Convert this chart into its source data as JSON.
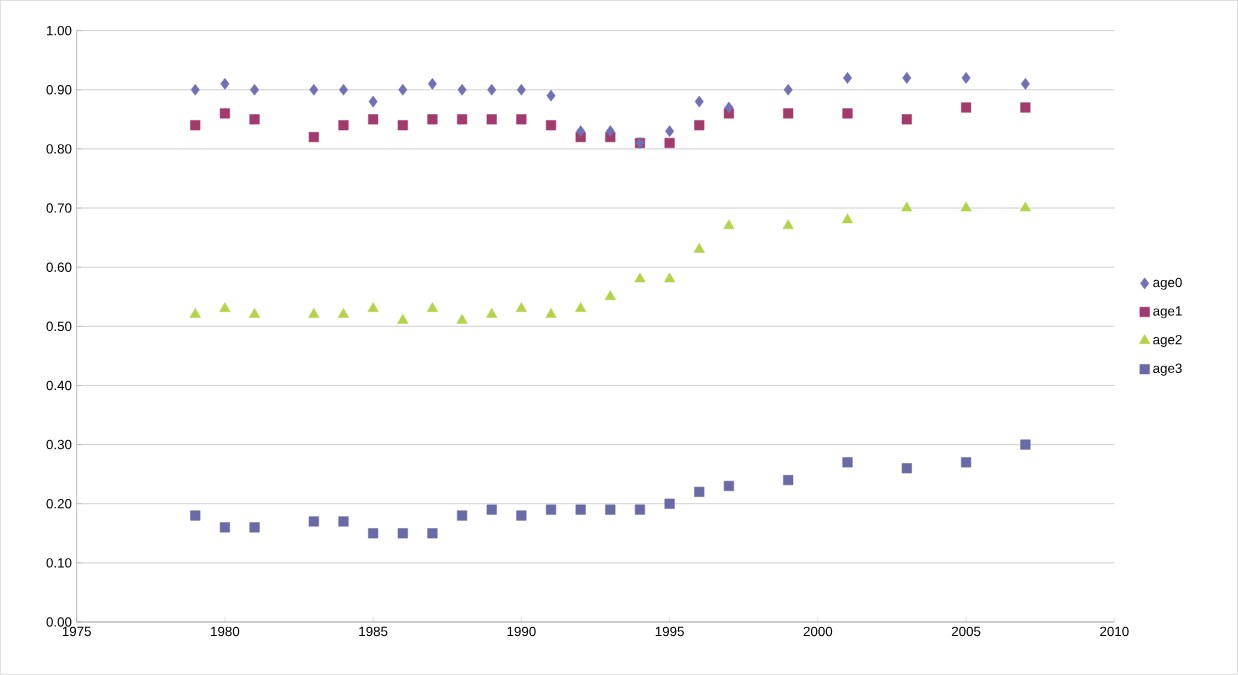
{
  "chart_data": {
    "type": "scatter",
    "x": [
      1979,
      1980,
      1981,
      1983,
      1984,
      1985,
      1986,
      1987,
      1988,
      1989,
      1990,
      1991,
      1992,
      1993,
      1994,
      1995,
      1996,
      1997,
      1999,
      2001,
      2003,
      2005,
      2007
    ],
    "series": [
      {
        "name": "age0",
        "color": "#7070b4",
        "marker": "diamond",
        "values": [
          0.9,
          0.91,
          0.9,
          0.9,
          0.9,
          0.88,
          0.9,
          0.91,
          0.9,
          0.9,
          0.9,
          0.89,
          0.83,
          0.83,
          0.81,
          0.83,
          0.88,
          0.87,
          0.9,
          0.92,
          0.92,
          0.92,
          0.91
        ]
      },
      {
        "name": "age1",
        "color": "#a23a6c",
        "marker": "square",
        "values": [
          0.84,
          0.86,
          0.85,
          0.82,
          0.84,
          0.85,
          0.84,
          0.85,
          0.85,
          0.85,
          0.85,
          0.84,
          0.82,
          0.82,
          0.81,
          0.81,
          0.84,
          0.86,
          0.86,
          0.86,
          0.85,
          0.87,
          0.87
        ]
      },
      {
        "name": "age2",
        "color": "#b5d34a",
        "marker": "triangle",
        "values": [
          0.52,
          0.53,
          0.52,
          0.52,
          0.52,
          0.53,
          0.51,
          0.53,
          0.51,
          0.52,
          0.53,
          0.52,
          0.53,
          0.55,
          0.58,
          0.58,
          0.63,
          0.67,
          0.67,
          0.68,
          0.7,
          0.7,
          0.7
        ]
      },
      {
        "name": "age3",
        "color": "#6a6aa6",
        "marker": "square",
        "values": [
          0.18,
          0.16,
          0.16,
          0.17,
          0.17,
          0.15,
          0.15,
          0.15,
          0.18,
          0.19,
          0.18,
          0.19,
          0.19,
          0.19,
          0.19,
          0.2,
          0.22,
          0.23,
          0.24,
          0.27,
          0.26,
          0.27,
          0.3
        ]
      }
    ],
    "xlim": [
      1975,
      2010
    ],
    "xticks": [
      1975,
      1980,
      1985,
      1990,
      1995,
      2000,
      2005,
      2010
    ],
    "ylim": [
      0,
      1
    ],
    "yticks": [
      {
        "value": 0,
        "label": "0.00"
      },
      {
        "value": 0.1,
        "label": "0.10"
      },
      {
        "value": 0.2,
        "label": "0.20"
      },
      {
        "value": 0.3,
        "label": "0.30"
      },
      {
        "value": 0.4,
        "label": "0.40"
      },
      {
        "value": 0.5,
        "label": "0.50"
      },
      {
        "value": 0.6,
        "label": "0.60"
      },
      {
        "value": 0.7,
        "label": "0.70"
      },
      {
        "value": 0.8,
        "label": "0.80"
      },
      {
        "value": 0.9,
        "label": "0.90"
      },
      {
        "value": 1,
        "label": "1.00"
      }
    ],
    "grid": "y",
    "legend": "right"
  }
}
